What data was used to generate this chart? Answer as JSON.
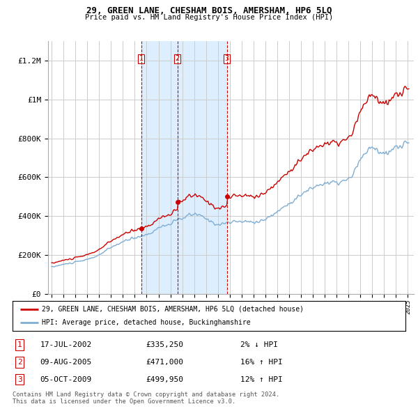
{
  "title": "29, GREEN LANE, CHESHAM BOIS, AMERSHAM, HP6 5LQ",
  "subtitle": "Price paid vs. HM Land Registry's House Price Index (HPI)",
  "legend_label_red": "29, GREEN LANE, CHESHAM BOIS, AMERSHAM, HP6 5LQ (detached house)",
  "legend_label_blue": "HPI: Average price, detached house, Buckinghamshire",
  "footer1": "Contains HM Land Registry data © Crown copyright and database right 2024.",
  "footer2": "This data is licensed under the Open Government Licence v3.0.",
  "transactions": [
    {
      "num": 1,
      "date": "17-JUL-2002",
      "price": "£335,250",
      "change": "2% ↓ HPI"
    },
    {
      "num": 2,
      "date": "09-AUG-2005",
      "price": "£471,000",
      "change": "16% ↑ HPI"
    },
    {
      "num": 3,
      "date": "05-OCT-2009",
      "price": "£499,950",
      "change": "12% ↑ HPI"
    }
  ],
  "red_color": "#cc0000",
  "blue_color": "#7eadd4",
  "fill_color": "#ddeeff",
  "vline_color": "#cc0000",
  "grid_color": "#cccccc",
  "bg_color": "#ffffff",
  "ylim": [
    0,
    1300000
  ],
  "yticks": [
    0,
    200000,
    400000,
    600000,
    800000,
    1000000,
    1200000
  ],
  "ytick_labels": [
    "£0",
    "£200K",
    "£400K",
    "£600K",
    "£800K",
    "£1M",
    "£1.2M"
  ],
  "purchase_dates": [
    2002.54,
    2005.6,
    2009.76
  ],
  "purchase_prices": [
    335250,
    471000,
    499950
  ]
}
